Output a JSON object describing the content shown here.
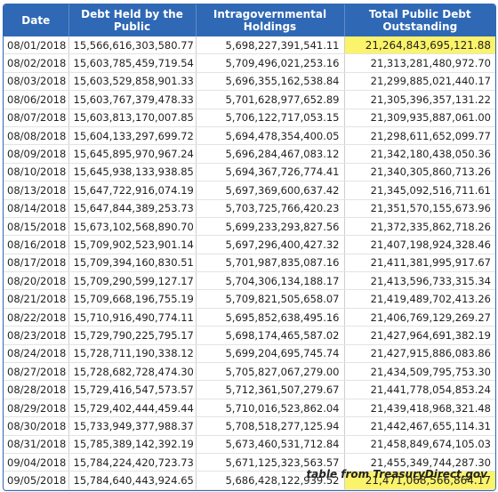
{
  "table": {
    "headers": [
      "Date",
      "Debt Held by the Public",
      "Intragovernmental Holdings",
      "Total Public Debt Outstanding"
    ],
    "rows": [
      {
        "date": "08/01/2018",
        "public": "15,566,616,303,580.77",
        "intragov": "5,698,227,391,541.11",
        "total": "21,264,843,695,121.88",
        "highlight": true
      },
      {
        "date": "08/02/2018",
        "public": "15,603,785,459,719.54",
        "intragov": "5,709,496,021,253.16",
        "total": "21,313,281,480,972.70",
        "highlight": false
      },
      {
        "date": "08/03/2018",
        "public": "15,603,529,858,901.33",
        "intragov": "5,696,355,162,538.84",
        "total": "21,299,885,021,440.17",
        "highlight": false
      },
      {
        "date": "08/06/2018",
        "public": "15,603,767,379,478.33",
        "intragov": "5,701,628,977,652.89",
        "total": "21,305,396,357,131.22",
        "highlight": false
      },
      {
        "date": "08/07/2018",
        "public": "15,603,813,170,007.85",
        "intragov": "5,706,122,717,053.15",
        "total": "21,309,935,887,061.00",
        "highlight": false
      },
      {
        "date": "08/08/2018",
        "public": "15,604,133,297,699.72",
        "intragov": "5,694,478,354,400.05",
        "total": "21,298,611,652,099.77",
        "highlight": false
      },
      {
        "date": "08/09/2018",
        "public": "15,645,895,970,967.24",
        "intragov": "5,696,284,467,083.12",
        "total": "21,342,180,438,050.36",
        "highlight": false
      },
      {
        "date": "08/10/2018",
        "public": "15,645,938,133,938.85",
        "intragov": "5,694,367,726,774.41",
        "total": "21,340,305,860,713.26",
        "highlight": false
      },
      {
        "date": "08/13/2018",
        "public": "15,647,722,916,074.19",
        "intragov": "5,697,369,600,637.42",
        "total": "21,345,092,516,711.61",
        "highlight": false
      },
      {
        "date": "08/14/2018",
        "public": "15,647,844,389,253.73",
        "intragov": "5,703,725,766,420.23",
        "total": "21,351,570,155,673.96",
        "highlight": false
      },
      {
        "date": "08/15/2018",
        "public": "15,673,102,568,890.70",
        "intragov": "5,699,233,293,827.56",
        "total": "21,372,335,862,718.26",
        "highlight": false
      },
      {
        "date": "08/16/2018",
        "public": "15,709,902,523,901.14",
        "intragov": "5,697,296,400,427.32",
        "total": "21,407,198,924,328.46",
        "highlight": false
      },
      {
        "date": "08/17/2018",
        "public": "15,709,394,160,830.51",
        "intragov": "5,701,987,835,087.16",
        "total": "21,411,381,995,917.67",
        "highlight": false
      },
      {
        "date": "08/20/2018",
        "public": "15,709,290,599,127.17",
        "intragov": "5,704,306,134,188.17",
        "total": "21,413,596,733,315.34",
        "highlight": false
      },
      {
        "date": "08/21/2018",
        "public": "15,709,668,196,755.19",
        "intragov": "5,709,821,505,658.07",
        "total": "21,419,489,702,413.26",
        "highlight": false
      },
      {
        "date": "08/22/2018",
        "public": "15,710,916,490,774.11",
        "intragov": "5,695,852,638,495.16",
        "total": "21,406,769,129,269.27",
        "highlight": false
      },
      {
        "date": "08/23/2018",
        "public": "15,729,790,225,795.17",
        "intragov": "5,698,174,465,587.02",
        "total": "21,427,964,691,382.19",
        "highlight": false
      },
      {
        "date": "08/24/2018",
        "public": "15,728,711,190,338.12",
        "intragov": "5,699,204,695,745.74",
        "total": "21,427,915,886,083.86",
        "highlight": false
      },
      {
        "date": "08/27/2018",
        "public": "15,728,682,728,474.30",
        "intragov": "5,705,827,067,279.00",
        "total": "21,434,509,795,753.30",
        "highlight": false
      },
      {
        "date": "08/28/2018",
        "public": "15,729,416,547,573.57",
        "intragov": "5,712,361,507,279.67",
        "total": "21,441,778,054,853.24",
        "highlight": false
      },
      {
        "date": "08/29/2018",
        "public": "15,729,402,444,459.44",
        "intragov": "5,710,016,523,862.04",
        "total": "21,439,418,968,321.48",
        "highlight": false
      },
      {
        "date": "08/30/2018",
        "public": "15,733,949,377,988.37",
        "intragov": "5,708,518,277,125.94",
        "total": "21,442,467,655,114.31",
        "highlight": false
      },
      {
        "date": "08/31/2018",
        "public": "15,785,389,142,392.19",
        "intragov": "5,673,460,531,712.84",
        "total": "21,458,849,674,105.03",
        "highlight": false
      },
      {
        "date": "09/04/2018",
        "public": "15,784,224,420,723.73",
        "intragov": "5,671,125,323,563.57",
        "total": "21,455,349,744,287.30",
        "highlight": false
      },
      {
        "date": "09/05/2018",
        "public": "15,784,640,443,924.65",
        "intragov": "5,686,428,122,939.52",
        "total": "21,471,068,566,864.17",
        "highlight": true
      }
    ]
  },
  "credit": "table from TreasuryDirect.gov",
  "colors": {
    "header_bg": "#2f68b4",
    "highlight": "#fbf36a"
  }
}
